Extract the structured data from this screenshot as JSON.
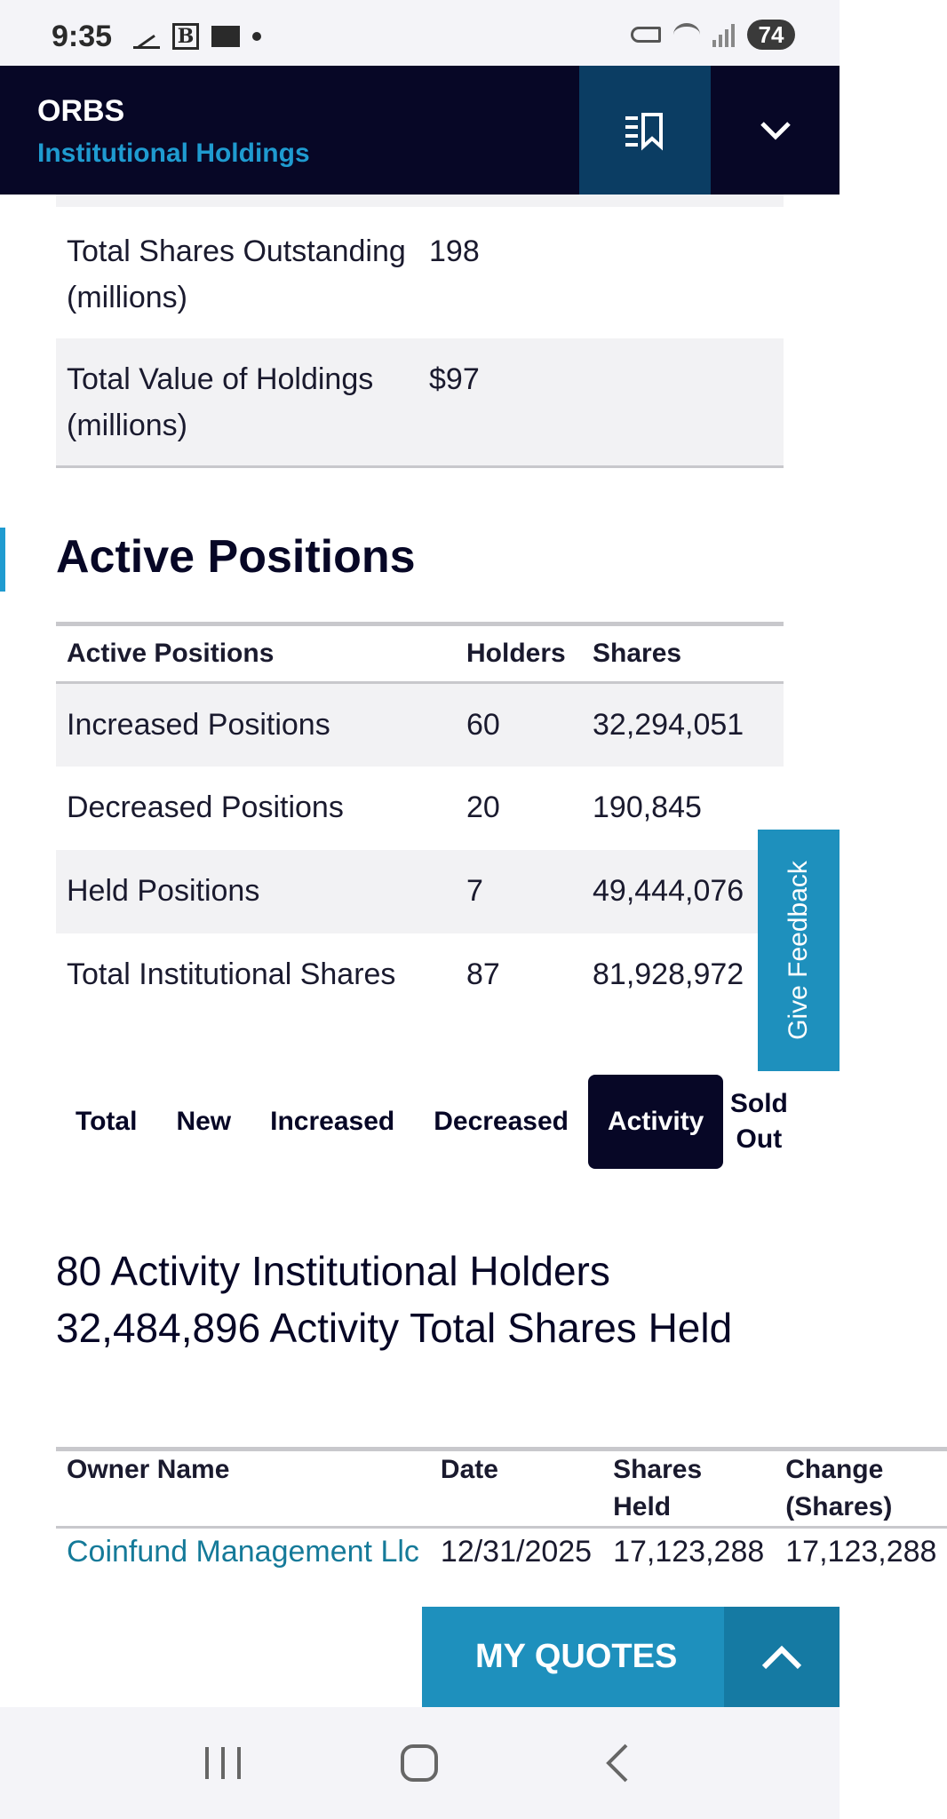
{
  "status_bar": {
    "time": "9:35",
    "b_icon": "B",
    "battery": "74"
  },
  "header": {
    "ticker": "ORBS",
    "subtitle": "Institutional Holdings"
  },
  "summary": [
    {
      "label": "Total Shares Outstanding (millions)",
      "value": "198"
    },
    {
      "label": "Total Value of Holdings (millions)",
      "value": "$97"
    }
  ],
  "section_title": "Active Positions",
  "positions": {
    "headers": [
      "Active Positions",
      "Holders",
      "Shares"
    ],
    "rows": [
      {
        "label": "Increased Positions",
        "holders": "60",
        "shares": "32,294,051"
      },
      {
        "label": "Decreased Positions",
        "holders": "20",
        "shares": "190,845"
      },
      {
        "label": "Held Positions",
        "holders": "7",
        "shares": "49,444,076"
      },
      {
        "label": "Total Institutional Shares",
        "holders": "87",
        "shares": "81,928,972"
      }
    ]
  },
  "tabs": [
    {
      "label": "Total"
    },
    {
      "label": "New"
    },
    {
      "label": "Increased"
    },
    {
      "label": "Decreased"
    },
    {
      "label": "Activity"
    },
    {
      "label": "Sold Out"
    }
  ],
  "active_tab": "Activity",
  "activity_summary": "80 Activity Institutional Holders 32,484,896 Activity Total Shares Held",
  "holders": {
    "headers": [
      "Owner Name",
      "Date",
      "Shares Held",
      "Change (Shares)"
    ],
    "rows": [
      {
        "owner": "Coinfund Management Llc",
        "date": "12/31/2025",
        "shares_held": "17,123,288",
        "change": "17,123,288"
      }
    ]
  },
  "feedback_label": "Give Feedback",
  "quotes_label": "MY QUOTES",
  "icons": {
    "watchlist": "watchlist-bookmark-icon",
    "dropdown": "chevron-down-icon",
    "quotes_toggle": "chevron-up-icon",
    "nav": [
      "recent-apps-icon",
      "home-icon",
      "back-icon"
    ]
  },
  "colors": {
    "header_bg": "#070726",
    "accent": "#1f9bd0",
    "link": "#157a99"
  }
}
